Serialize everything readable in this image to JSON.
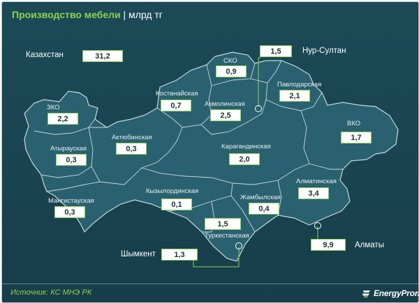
{
  "header": {
    "title": "Производство мебели",
    "separator": " | ",
    "unit": "млрд тг"
  },
  "footer": {
    "source": "Источник: КС МНЭ РК",
    "brand": "EnergyProm"
  },
  "kazakhstan": {
    "label": "Казахстан",
    "value": "31,2"
  },
  "regions": [
    {
      "name": "СКО",
      "value": "0,9"
    },
    {
      "name": "Костанайская",
      "value": "0,7"
    },
    {
      "name": "Акмолинская",
      "value": "2,5"
    },
    {
      "name": "Павлодарская",
      "value": "2,1"
    },
    {
      "name": "ЗКО",
      "value": "2,2"
    },
    {
      "name": "Актюбинская",
      "value": "0,3"
    },
    {
      "name": "Карагандинская",
      "value": "2,0"
    },
    {
      "name": "ВКО",
      "value": "1,7"
    },
    {
      "name": "Атырауская",
      "value": "0,3"
    },
    {
      "name": "Кызылординская",
      "value": "0,1"
    },
    {
      "name": "Жамбылская",
      "value": "0,4"
    },
    {
      "name": "Алматинская",
      "value": "3,4"
    },
    {
      "name": "Мангистауская",
      "value": "0,3"
    },
    {
      "name": "Туркестанская",
      "value": "1,5"
    }
  ],
  "cities": [
    {
      "name": "Нур-Султан",
      "value": "1,5"
    },
    {
      "name": "Алматы",
      "value": "9,9"
    },
    {
      "name": "Шымкент",
      "value": "1,3"
    }
  ],
  "colors": {
    "background": "#1b4a57",
    "land": "#2a6170",
    "border": "#c9d8dc",
    "accent": "#8fd14f",
    "box_bg": "#ffffff"
  }
}
